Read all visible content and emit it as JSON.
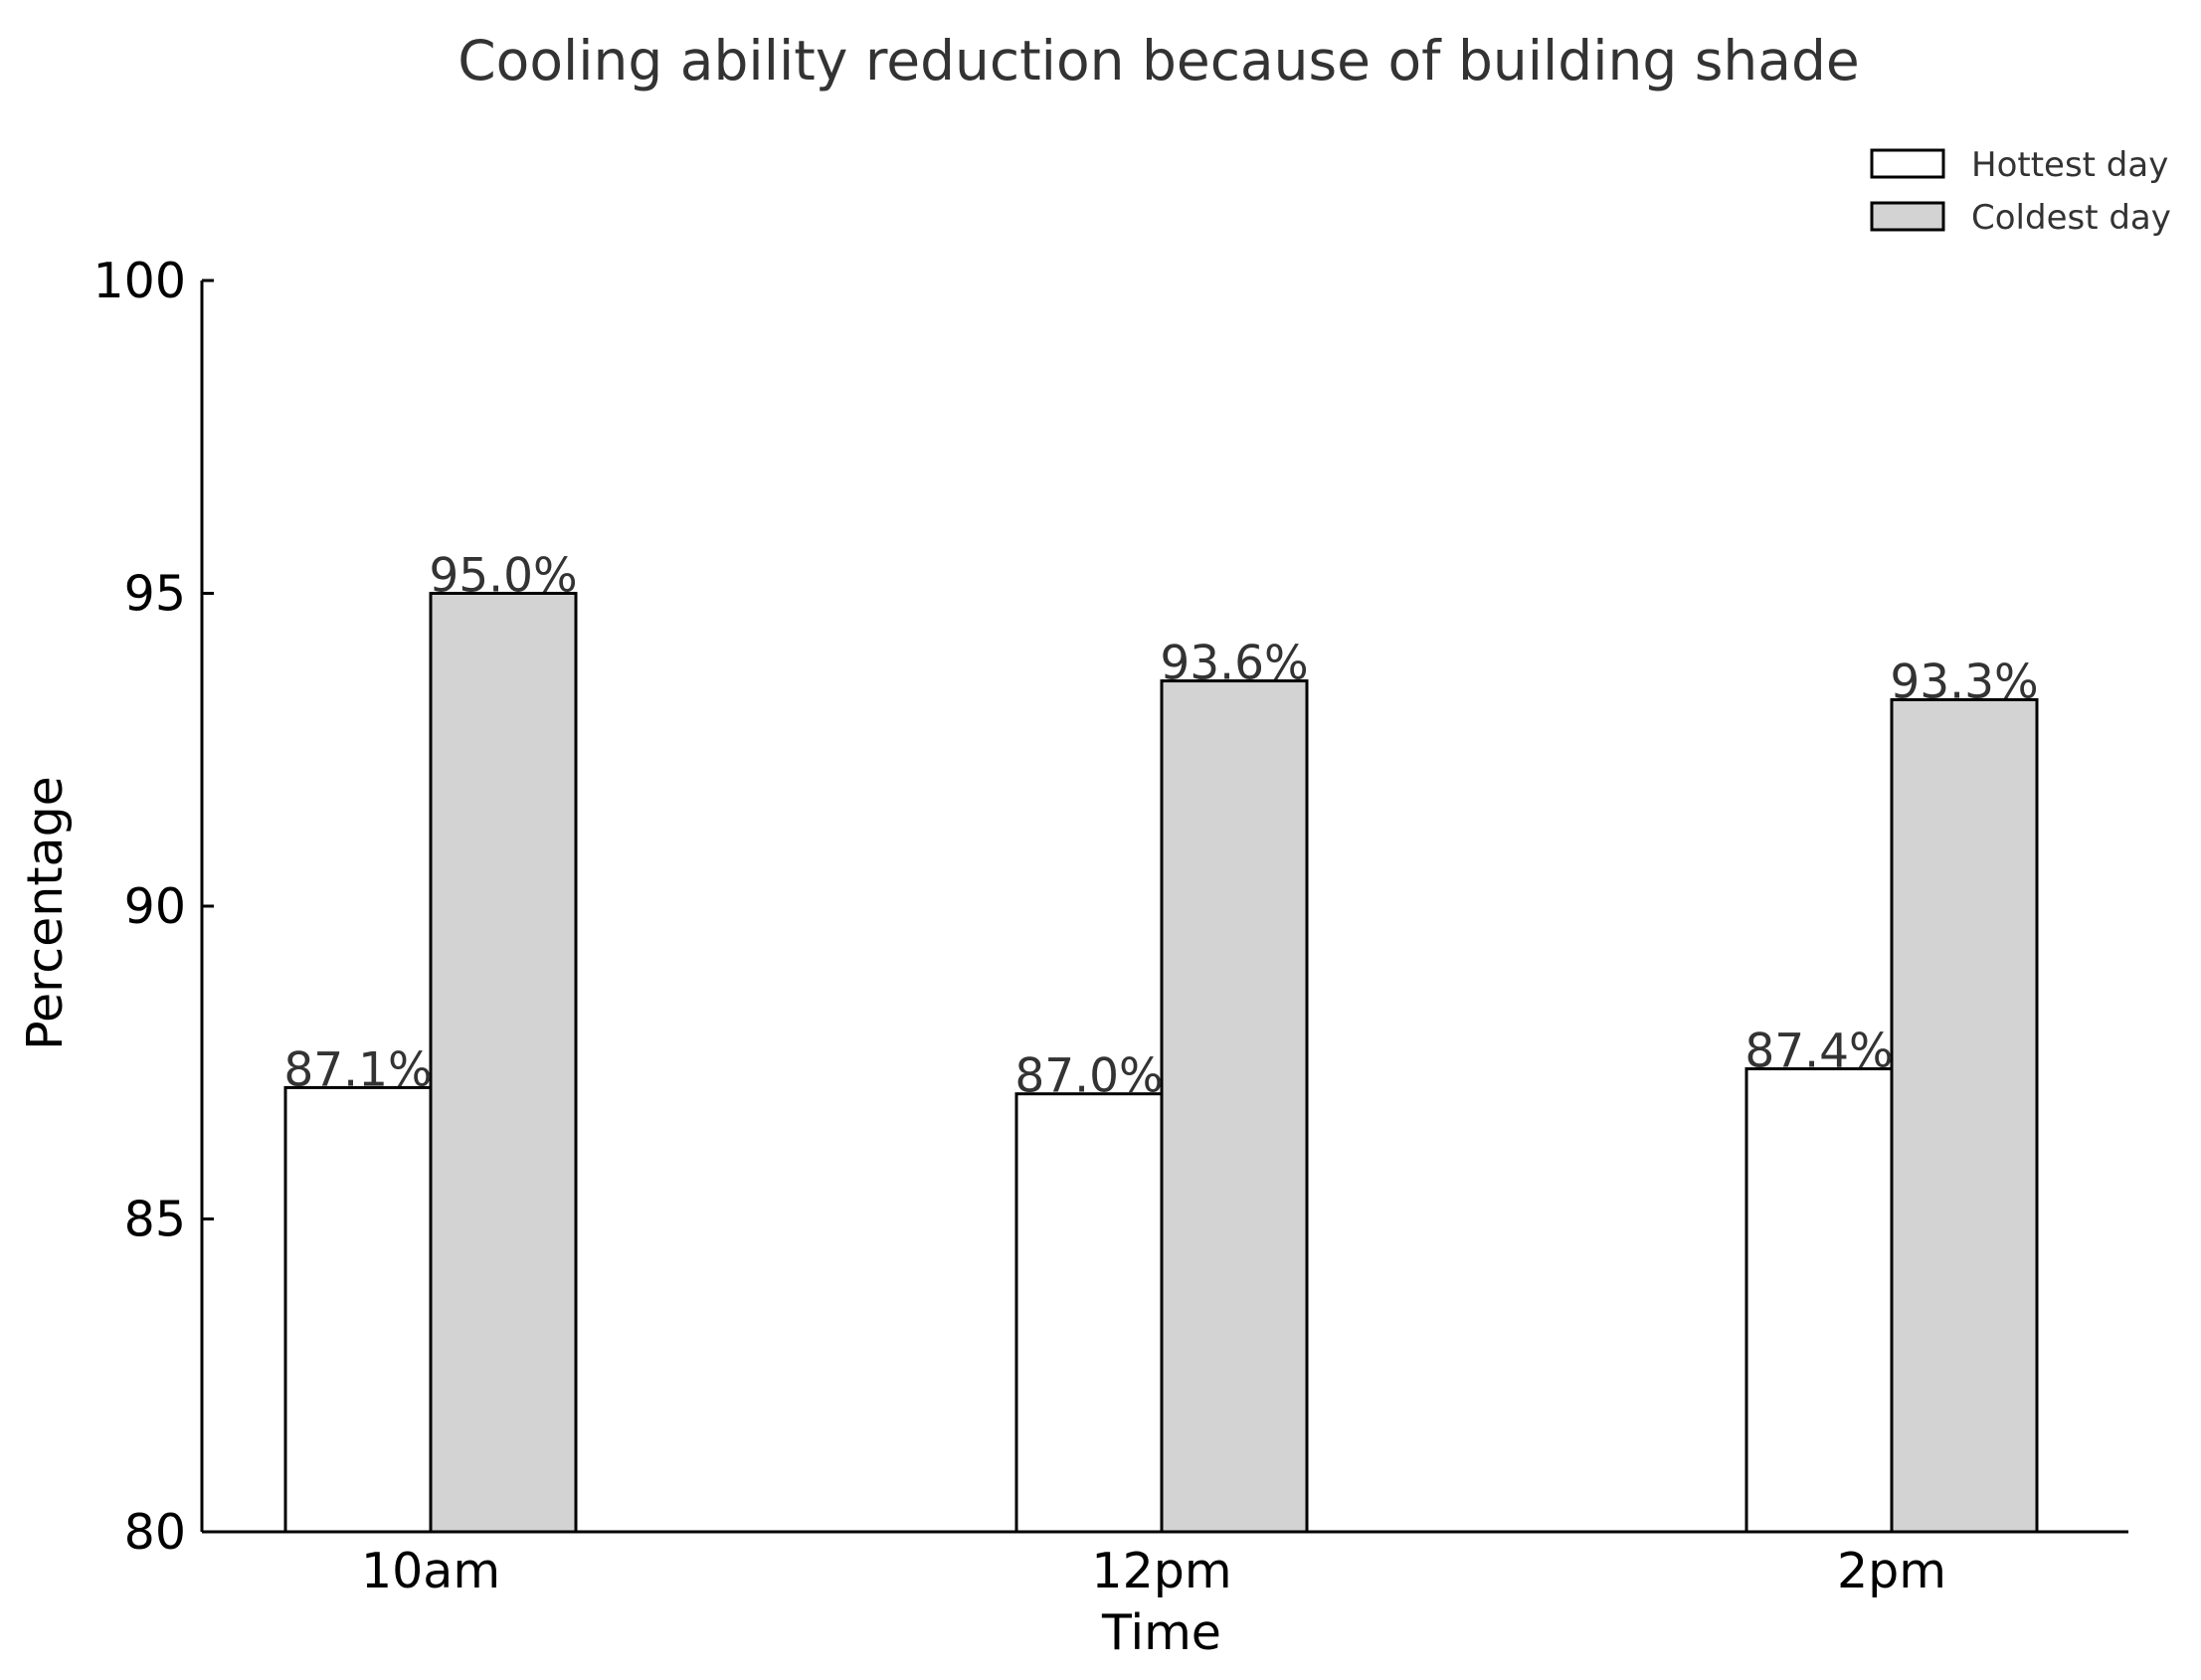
{
  "chart_data": {
    "type": "bar",
    "title": "Cooling ability reduction because of building shade",
    "xlabel": "Time",
    "ylabel": "Percentage",
    "categories": [
      "10am",
      "12pm",
      "2pm"
    ],
    "series": [
      {
        "name": "Hottest day",
        "values": [
          87.1,
          87.0,
          87.4
        ],
        "labels": [
          "87.1%",
          "87.0%",
          "87.4%"
        ],
        "color": "#ffffff"
      },
      {
        "name": "Coldest day",
        "values": [
          95.0,
          93.6,
          93.3
        ],
        "labels": [
          "95.0%",
          "93.6%",
          "93.3%"
        ],
        "color": "#d3d3d3"
      }
    ],
    "ylim": [
      80,
      100
    ],
    "yticks": [
      80,
      85,
      90,
      95,
      100
    ],
    "ytick_labels": [
      "80",
      "85",
      "90",
      "95",
      "100"
    ],
    "grid": false,
    "legend_position": "top-right"
  }
}
